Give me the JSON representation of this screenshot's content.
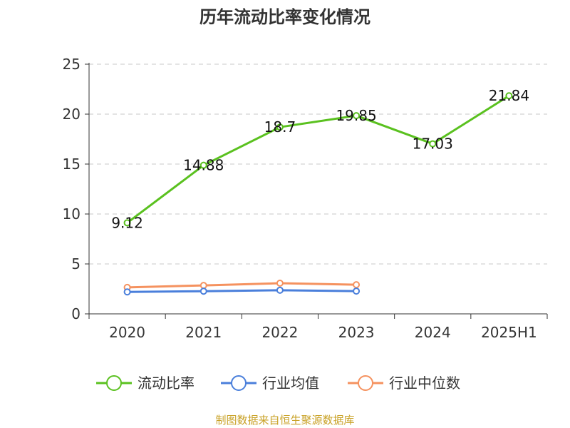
{
  "chart_data": {
    "type": "line",
    "title": "历年流动比率变化情况",
    "categories": [
      "2020",
      "2021",
      "2022",
      "2023",
      "2024",
      "2025H1"
    ],
    "ylim": [
      0,
      25
    ],
    "yticks": [
      "0",
      "5",
      "10",
      "15",
      "20",
      "25"
    ],
    "grid": true,
    "legend_position": "bottom",
    "series": [
      {
        "name": "流动比率",
        "color": "#5ac11f",
        "values": [
          9.12,
          14.88,
          18.7,
          19.85,
          17.03,
          21.84
        ],
        "labels": [
          "9.12",
          "14.88",
          "18.7",
          "19.85",
          "17.03",
          "21.84"
        ]
      },
      {
        "name": "行业均值",
        "color": "#4a7fdb",
        "values": [
          2.2,
          2.27,
          2.37,
          2.28,
          null,
          null
        ]
      },
      {
        "name": "行业中位数",
        "color": "#f5925f",
        "values": [
          2.65,
          2.85,
          3.07,
          2.92,
          null,
          null
        ]
      }
    ]
  },
  "source": "制图数据来自恒生聚源数据库"
}
